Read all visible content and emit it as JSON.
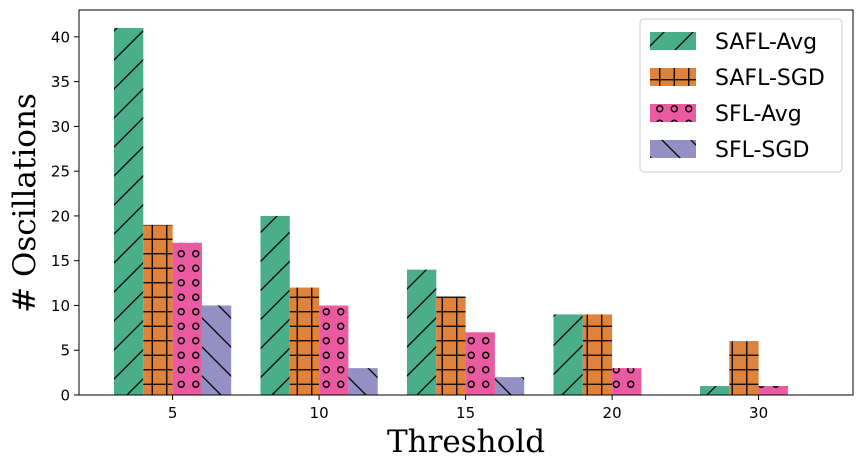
{
  "chart_data": {
    "type": "bar",
    "title": "",
    "xlabel": "Threshold",
    "ylabel": "# Oscillations",
    "categories": [
      "5",
      "10",
      "15",
      "20",
      "30"
    ],
    "ylim": [
      0,
      43
    ],
    "yticks": [
      0,
      5,
      10,
      15,
      20,
      25,
      30,
      35,
      40
    ],
    "grid": false,
    "legend_position": "top-right",
    "series": [
      {
        "name": "SAFL-Avg",
        "color": "#4aae8a",
        "hatch": "diagonal-forward",
        "values": [
          41,
          20,
          14,
          9,
          1
        ]
      },
      {
        "name": "SAFL-SGD",
        "color": "#e0833a",
        "hatch": "grid",
        "values": [
          19,
          12,
          11,
          9,
          6
        ]
      },
      {
        "name": "SFL-Avg",
        "color": "#e95aa0",
        "hatch": "circles",
        "values": [
          17,
          10,
          7,
          3,
          1
        ]
      },
      {
        "name": "SFL-SGD",
        "color": "#9490c4",
        "hatch": "diagonal-backward",
        "values": [
          10,
          3,
          2,
          0,
          0
        ]
      }
    ]
  }
}
